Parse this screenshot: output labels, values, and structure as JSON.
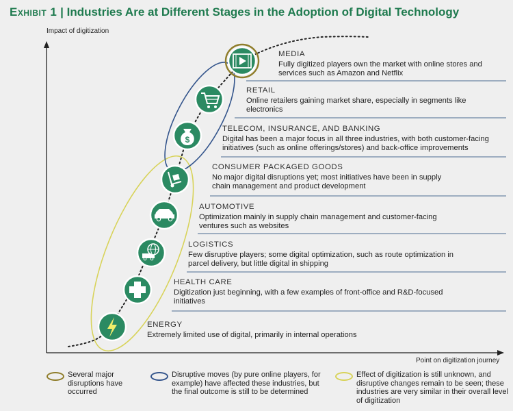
{
  "title": {
    "exhibit": "Exhibit 1",
    "separator": "|",
    "text": "Industries Are at Different Stages in the Adoption of Digital Technology"
  },
  "axes": {
    "y_label": "Impact of digitization",
    "x_label": "Point on digitization journey"
  },
  "stages": [
    {
      "name": "MEDIA",
      "desc": "Fully digitized players own the market with online stores and services such as Amazon and Netflix",
      "icon": "video-play-icon"
    },
    {
      "name": "RETAIL",
      "desc": "Online retailers gaining market share, especially in segments like electronics",
      "icon": "shopping-cart-icon"
    },
    {
      "name": "TELECOM, INSURANCE, AND BANKING",
      "desc": "Digital has been a major focus in all three industries, with both customer-facing initiatives (such as online offerings/stores) and back-office improvements",
      "icon": "money-bag-icon"
    },
    {
      "name": "CONSUMER PACKAGED GOODS",
      "desc": "No major digital disruptions yet; most initiatives have been in supply chain management and product development",
      "icon": "hand-truck-icon"
    },
    {
      "name": "AUTOMOTIVE",
      "desc": "Optimization mainly in supply chain management and customer-facing ventures such as websites",
      "icon": "car-icon"
    },
    {
      "name": "LOGISTICS",
      "desc": "Few disruptive players; some digital optimization, such as route optimization in parcel delivery, but little digital in shipping",
      "icon": "globe-truck-icon"
    },
    {
      "name": "HEALTH CARE",
      "desc": "Digitization just beginning, with a few examples of front-office and R&D-focused initiatives",
      "icon": "medical-cross-icon"
    },
    {
      "name": "ENERGY",
      "desc": "Extremely limited use of digital, primarily in internal operations",
      "icon": "lightning-bolt-icon"
    }
  ],
  "legend": [
    {
      "text": "Several major disruptions have occurred",
      "color": "#8f7d2a"
    },
    {
      "text": "Disruptive moves (by pure online players, for example) have affected these industries, but the final outcome is still to be determined",
      "color": "#34558c"
    },
    {
      "text": "Effect of digitization is still unknown, and disruptive changes remain to be seen; these industries are very similar in their overall level of digitization",
      "color": "#d8d35a"
    }
  ],
  "colors": {
    "title": "#1e7a4e",
    "icon_fill": "#2b8a62",
    "icon_ring": "#ffffff",
    "divider": "#4b6b91",
    "axis": "#222222"
  }
}
